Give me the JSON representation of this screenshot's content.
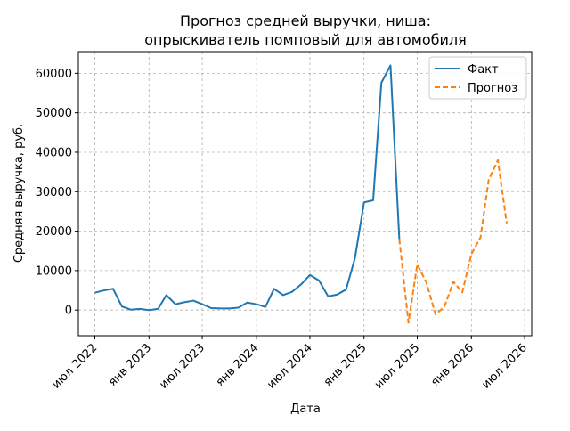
{
  "chart_data": {
    "type": "line",
    "title_line1": "Прогноз средней выручки, ниша:",
    "title_line2": "опрыскиватель помповый для автомобиля",
    "xlabel": "Дата",
    "ylabel": "Средняя выручка, руб.",
    "ylim": [
      -6500,
      65500
    ],
    "xlim": [
      "2022-05-06",
      "2026-07-25"
    ],
    "grid": true,
    "legend_position": "top-right",
    "x_ticks": [
      {
        "date": "2022-07-01",
        "label": "июл 2022"
      },
      {
        "date": "2023-01-01",
        "label": "янв 2023"
      },
      {
        "date": "2023-07-01",
        "label": "июл 2023"
      },
      {
        "date": "2024-01-01",
        "label": "янв 2024"
      },
      {
        "date": "2024-07-01",
        "label": "июл 2024"
      },
      {
        "date": "2025-01-01",
        "label": "янв 2025"
      },
      {
        "date": "2025-07-01",
        "label": "июл 2025"
      },
      {
        "date": "2026-01-01",
        "label": "янв 2026"
      },
      {
        "date": "2026-07-01",
        "label": "июл 2026"
      }
    ],
    "y_ticks": [
      {
        "value": 0,
        "label": "0"
      },
      {
        "value": 10000,
        "label": "10000"
      },
      {
        "value": 20000,
        "label": "20000"
      },
      {
        "value": 30000,
        "label": "30000"
      },
      {
        "value": 40000,
        "label": "40000"
      },
      {
        "value": 50000,
        "label": "50000"
      },
      {
        "value": 60000,
        "label": "60000"
      }
    ],
    "series": [
      {
        "name": "Факт",
        "color": "#1f77b4",
        "style": "solid",
        "points": [
          [
            "2022-07-01",
            4400
          ],
          [
            "2022-08-01",
            5000
          ],
          [
            "2022-09-01",
            5400
          ],
          [
            "2022-10-01",
            900
          ],
          [
            "2022-11-01",
            100
          ],
          [
            "2022-12-01",
            300
          ],
          [
            "2023-01-01",
            0
          ],
          [
            "2023-02-01",
            300
          ],
          [
            "2023-03-01",
            3800
          ],
          [
            "2023-04-01",
            1500
          ],
          [
            "2023-05-01",
            2000
          ],
          [
            "2023-06-01",
            2400
          ],
          [
            "2023-07-01",
            1500
          ],
          [
            "2023-08-01",
            500
          ],
          [
            "2023-09-01",
            400
          ],
          [
            "2023-10-01",
            400
          ],
          [
            "2023-11-01",
            600
          ],
          [
            "2023-12-01",
            1900
          ],
          [
            "2024-01-01",
            1500
          ],
          [
            "2024-02-01",
            800
          ],
          [
            "2024-03-01",
            5400
          ],
          [
            "2024-04-01",
            3800
          ],
          [
            "2024-05-01",
            4600
          ],
          [
            "2024-06-01",
            6500
          ],
          [
            "2024-07-01",
            8900
          ],
          [
            "2024-08-01",
            7500
          ],
          [
            "2024-09-01",
            3500
          ],
          [
            "2024-10-01",
            3900
          ],
          [
            "2024-11-01",
            5200
          ],
          [
            "2024-12-01",
            13100
          ],
          [
            "2025-01-01",
            27300
          ],
          [
            "2025-02-01",
            27800
          ],
          [
            "2025-03-01",
            57600
          ],
          [
            "2025-04-01",
            62000
          ],
          [
            "2025-05-01",
            18000
          ]
        ]
      },
      {
        "name": "Прогноз",
        "color": "#ff7f0e",
        "style": "dashed",
        "points": [
          [
            "2025-05-01",
            18000
          ],
          [
            "2025-06-01",
            -3200
          ],
          [
            "2025-07-01",
            11600
          ],
          [
            "2025-08-01",
            7000
          ],
          [
            "2025-09-01",
            -1100
          ],
          [
            "2025-10-01",
            800
          ],
          [
            "2025-11-01",
            7200
          ],
          [
            "2025-12-01",
            4500
          ],
          [
            "2026-01-01",
            14200
          ],
          [
            "2026-02-01",
            18400
          ],
          [
            "2026-03-01",
            33100
          ],
          [
            "2026-04-01",
            38000
          ],
          [
            "2026-05-01",
            22000
          ]
        ]
      }
    ]
  }
}
